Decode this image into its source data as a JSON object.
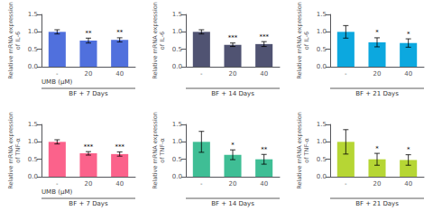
{
  "chart_data": [
    {
      "type": "bar",
      "ylabel": "Relative mRNA expression\nof IL-6",
      "xlabel": "UMB (μM)",
      "bottom_label": "BF + 7 Days",
      "categories": [
        "-",
        "20",
        "40"
      ],
      "values": [
        1.0,
        0.75,
        0.77
      ],
      "errors": [
        0.06,
        0.07,
        0.06
      ],
      "annotations": [
        {
          "category": "20",
          "text": "**"
        },
        {
          "category": "40",
          "text": "**"
        }
      ],
      "ylim": [
        0,
        1.5
      ],
      "yticks": [
        {
          "value": 0,
          "label": "0.0"
        },
        0.5,
        {
          "value": 1,
          "label": "1.0"
        },
        1.5
      ],
      "grid": false
    },
    {
      "type": "bar",
      "ylabel": "Relative mRNA expression\nof IL-6",
      "bottom_label": "BF + 14 Days",
      "categories": [
        "-",
        "20",
        "40"
      ],
      "values": [
        1.0,
        0.63,
        0.65
      ],
      "errors": [
        0.06,
        0.05,
        0.07
      ],
      "annotations": [
        {
          "category": "20",
          "text": "***"
        },
        {
          "category": "40",
          "text": "***"
        }
      ],
      "ylim": [
        0,
        1.5
      ],
      "yticks": [
        {
          "value": 0,
          "label": "0.0"
        },
        0.5,
        {
          "value": 1,
          "label": "1.0"
        },
        1.5
      ],
      "grid": false
    },
    {
      "type": "bar",
      "ylabel": "Relative mRNA expression\nof IL-6",
      "bottom_label": "BF + 21 Days",
      "categories": [
        "-",
        "20",
        "40"
      ],
      "values": [
        1.0,
        0.7,
        0.68
      ],
      "errors": [
        0.18,
        0.13,
        0.12
      ],
      "annotations": [
        {
          "category": "20",
          "text": "*"
        },
        {
          "category": "40",
          "text": "*"
        }
      ],
      "ylim": [
        0,
        1.5
      ],
      "yticks": [
        {
          "value": 0,
          "label": "0.0"
        },
        0.5,
        {
          "value": 1,
          "label": "1.0"
        },
        1.5
      ],
      "grid": false
    },
    {
      "type": "bar",
      "ylabel": "Relative mRNA expression\nof TNF-α",
      "xlabel": "UMB (μM)",
      "bottom_label": "BF + 7 Days",
      "categories": [
        "-",
        "20",
        "40"
      ],
      "values": [
        1.0,
        0.67,
        0.65
      ],
      "errors": [
        0.06,
        0.05,
        0.06
      ],
      "annotations": [
        {
          "category": "20",
          "text": "***"
        },
        {
          "category": "40",
          "text": "***"
        }
      ],
      "ylim": [
        0,
        1.5
      ],
      "yticks": [
        {
          "value": 0,
          "label": "0.0"
        },
        0.5,
        {
          "value": 1,
          "label": "1.0"
        },
        1.5
      ],
      "grid": false
    },
    {
      "type": "bar",
      "ylabel": "Relative mRNA expression\nof TNF-α",
      "bottom_label": "BF + 14 Days",
      "categories": [
        "-",
        "20",
        "40"
      ],
      "values": [
        1.0,
        0.63,
        0.5
      ],
      "errors": [
        0.3,
        0.14,
        0.14
      ],
      "annotations": [
        {
          "category": "20",
          "text": "*"
        },
        {
          "category": "40",
          "text": "**"
        }
      ],
      "ylim": [
        0,
        1.5
      ],
      "yticks": [
        {
          "value": 0,
          "label": "0.0"
        },
        0.5,
        {
          "value": 1,
          "label": "1.0"
        },
        1.5
      ],
      "grid": false
    },
    {
      "type": "bar",
      "ylabel": "Relative mRNA expression\nof TNF-α",
      "bottom_label": "BF + 21 Days",
      "categories": [
        "-",
        "20",
        "40"
      ],
      "values": [
        1.0,
        0.5,
        0.48
      ],
      "errors": [
        0.35,
        0.17,
        0.15
      ],
      "annotations": [
        {
          "category": "20",
          "text": "*"
        },
        {
          "category": "40",
          "text": "*"
        }
      ],
      "ylim": [
        0,
        1.5
      ],
      "yticks": [
        {
          "value": 0,
          "label": "0.0"
        },
        0.5,
        {
          "value": 1,
          "label": "1.0"
        },
        1.5
      ],
      "grid": false
    }
  ]
}
